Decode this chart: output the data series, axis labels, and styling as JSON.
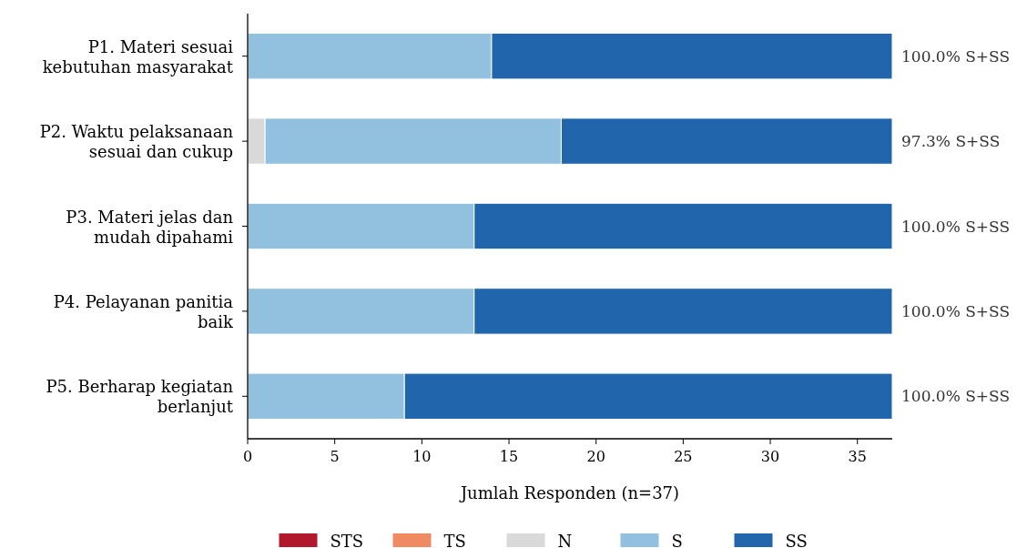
{
  "chart_data": {
    "type": "bar",
    "orientation": "horizontal",
    "stacked": true,
    "categories": [
      "P1. Materi sesuai kebutuhan masyarakat",
      "P2. Waktu pelaksanaan sesuai dan cukup",
      "P3. Materi jelas dan mudah dipahami",
      "P4. Pelayanan panitia baik",
      "P5. Berharap kegiatan berlanjut"
    ],
    "series": [
      {
        "name": "STS",
        "color": "#b2182b",
        "values": [
          0,
          0,
          0,
          0,
          0
        ]
      },
      {
        "name": "TS",
        "color": "#ef8a62",
        "values": [
          0,
          0,
          0,
          0,
          0
        ]
      },
      {
        "name": "N",
        "color": "#d9d9d9",
        "values": [
          0,
          1,
          0,
          0,
          0
        ]
      },
      {
        "name": "S",
        "color": "#92c0df",
        "values": [
          14,
          17,
          13,
          13,
          9
        ]
      },
      {
        "name": "SS",
        "color": "#2166ac",
        "values": [
          23,
          19,
          24,
          24,
          28
        ]
      }
    ],
    "xlim": [
      0,
      37
    ],
    "xticks": [
      0,
      5,
      10,
      15,
      20,
      25,
      30,
      35
    ],
    "xlabel": "Jumlah Responden (n=37)",
    "annotations": [
      "100.0% S+SS",
      "97.3% S+SS",
      "100.0% S+SS",
      "100.0% S+SS",
      "100.0% S+SS"
    ],
    "legend": "bottom",
    "grid": false
  }
}
